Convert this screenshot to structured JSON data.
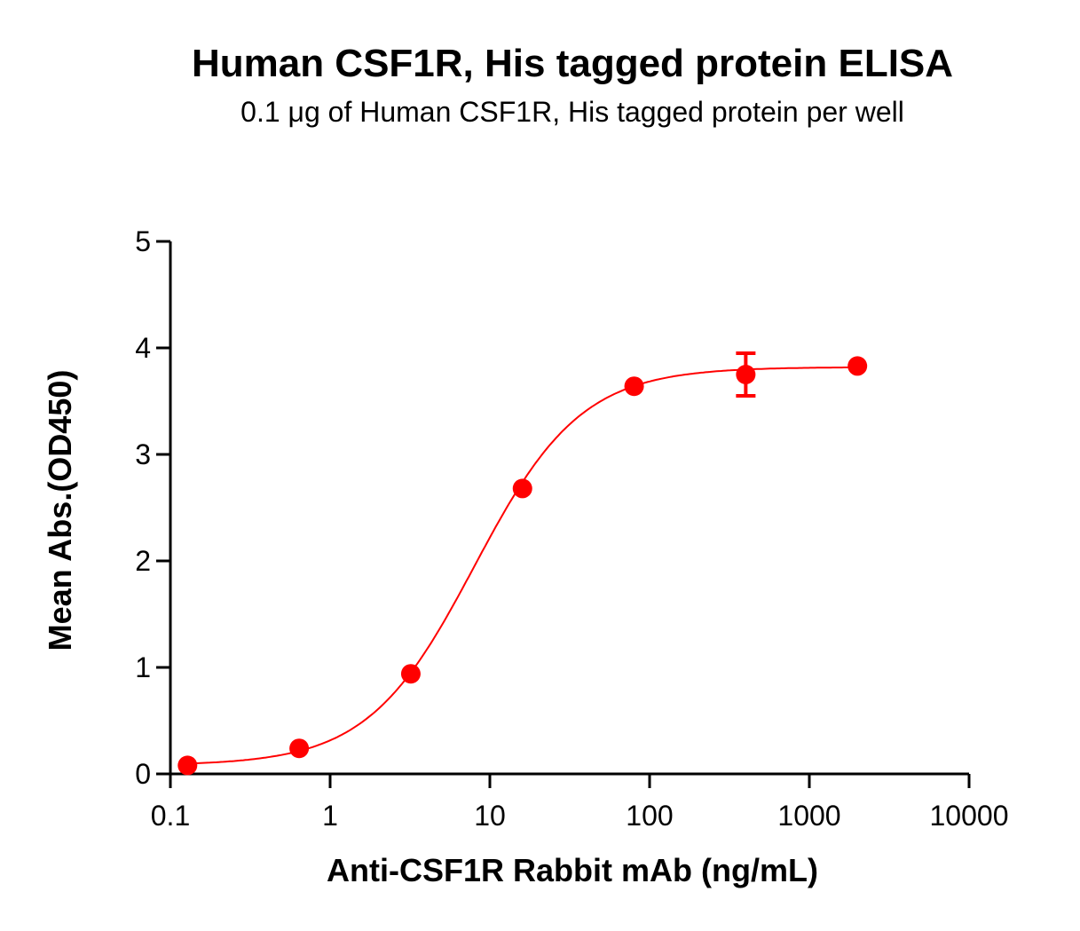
{
  "chart_data": {
    "type": "scatter",
    "title": "Human CSF1R, His tagged protein ELISA",
    "subtitle": "0.1 μg of Human CSF1R, His tagged protein per well",
    "xlabel": "Anti-CSF1R Rabbit mAb (ng/mL)",
    "ylabel": "Mean Abs.(OD450)",
    "xscale": "log",
    "xlim": [
      0.1,
      10000
    ],
    "ylim": [
      0,
      5
    ],
    "xticks": [
      "0.1",
      "1",
      "10",
      "100",
      "1000",
      "10000"
    ],
    "yticks": [
      "0",
      "1",
      "2",
      "3",
      "4",
      "5"
    ],
    "grid": false,
    "color": "#ff0000",
    "x": [
      0.128,
      0.64,
      3.2,
      16,
      80,
      400,
      2000
    ],
    "y": [
      0.08,
      0.24,
      0.94,
      2.68,
      3.64,
      3.75,
      3.83
    ],
    "error": [
      0,
      0,
      0,
      0,
      0,
      0.2,
      0
    ],
    "fit": {
      "model": "4PL",
      "bottom": 0.08,
      "top": 3.82,
      "ec50": 8,
      "hill": 1.3
    }
  }
}
